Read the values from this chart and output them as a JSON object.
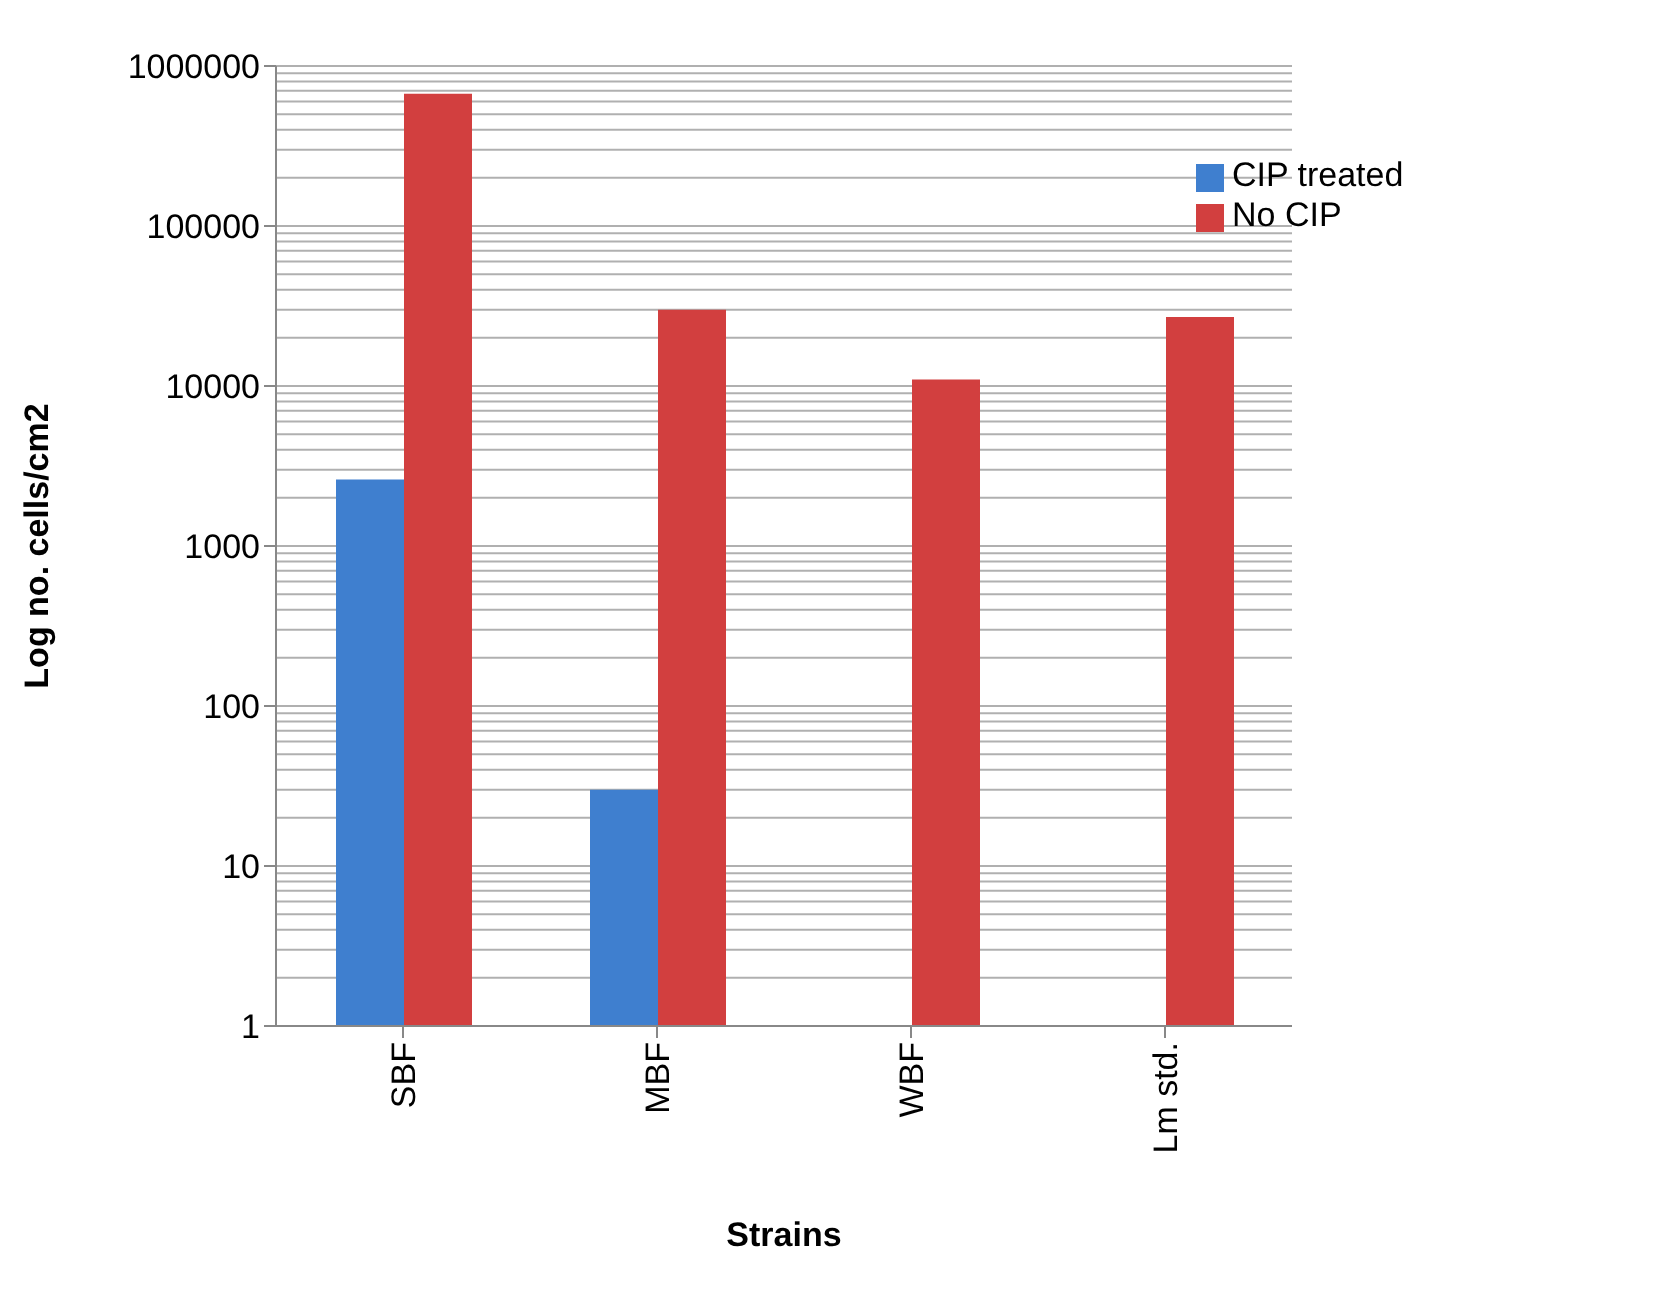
{
  "chart_data": {
    "type": "bar",
    "xlabel": "Strains",
    "ylabel": "Log no. cells/cm2",
    "categories": [
      "SBF",
      "MBF",
      "WBF",
      "Lm std."
    ],
    "series": [
      {
        "name": "CIP treated",
        "color": "#3f7fcf",
        "values": [
          2600,
          30,
          null,
          null
        ]
      },
      {
        "name": "No CIP",
        "color": "#d23f3f",
        "values": [
          670000,
          30000,
          11000,
          27000
        ]
      }
    ],
    "log": "y",
    "ylim": [
      1,
      1000000
    ],
    "yticks": [
      1,
      10,
      100,
      1000,
      10000,
      100000,
      1000000
    ],
    "grid": "y",
    "legend": "top right"
  }
}
